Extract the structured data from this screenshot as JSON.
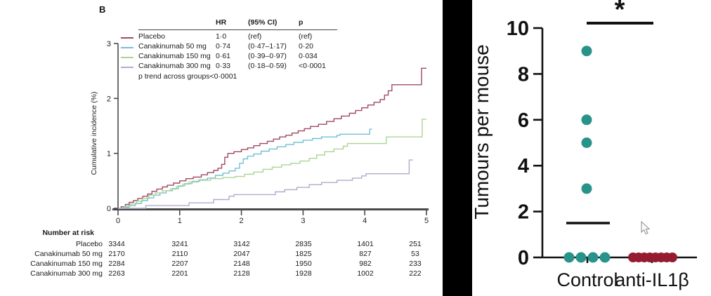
{
  "chart_data": [
    {
      "type": "line",
      "panel_label": "B",
      "ylabel": "Cumulative incidence (%)",
      "xlabel": "",
      "ylim": [
        0,
        3
      ],
      "xlim": [
        0,
        5
      ],
      "yticks": [
        0,
        1,
        2,
        3
      ],
      "xticks": [
        0,
        1,
        2,
        3,
        4,
        5
      ],
      "legend": {
        "headers": [
          "HR",
          "(95% CI)",
          "p"
        ],
        "trend_note": "p trend across groups<0·0001"
      },
      "series": [
        {
          "name": "Placebo",
          "color": "#a04b61",
          "hr": "1·0",
          "ci": "(ref)",
          "p": "(ref)",
          "points": [
            [
              0,
              0
            ],
            [
              0.05,
              0.03
            ],
            [
              0.12,
              0.07
            ],
            [
              0.18,
              0.11
            ],
            [
              0.25,
              0.14
            ],
            [
              0.32,
              0.18
            ],
            [
              0.4,
              0.22
            ],
            [
              0.48,
              0.26
            ],
            [
              0.55,
              0.31
            ],
            [
              0.63,
              0.35
            ],
            [
              0.72,
              0.39
            ],
            [
              0.8,
              0.42
            ],
            [
              0.9,
              0.46
            ],
            [
              1.0,
              0.5
            ],
            [
              1.1,
              0.54
            ],
            [
              1.22,
              0.57
            ],
            [
              1.35,
              0.61
            ],
            [
              1.45,
              0.65
            ],
            [
              1.55,
              0.69
            ],
            [
              1.62,
              0.73
            ],
            [
              1.68,
              0.8
            ],
            [
              1.73,
              0.93
            ],
            [
              1.78,
              1.0
            ],
            [
              1.88,
              1.03
            ],
            [
              2.0,
              1.07
            ],
            [
              2.1,
              1.1
            ],
            [
              2.2,
              1.14
            ],
            [
              2.3,
              1.18
            ],
            [
              2.42,
              1.22
            ],
            [
              2.52,
              1.26
            ],
            [
              2.62,
              1.3
            ],
            [
              2.72,
              1.33
            ],
            [
              2.82,
              1.37
            ],
            [
              2.92,
              1.41
            ],
            [
              3.02,
              1.45
            ],
            [
              3.12,
              1.49
            ],
            [
              3.25,
              1.53
            ],
            [
              3.38,
              1.58
            ],
            [
              3.5,
              1.63
            ],
            [
              3.62,
              1.68
            ],
            [
              3.75,
              1.73
            ],
            [
              3.85,
              1.78
            ],
            [
              3.95,
              1.83
            ],
            [
              4.05,
              1.88
            ],
            [
              4.15,
              1.93
            ],
            [
              4.25,
              1.98
            ],
            [
              4.32,
              2.06
            ],
            [
              4.38,
              2.14
            ],
            [
              4.44,
              2.25
            ],
            [
              4.9,
              2.25
            ],
            [
              4.92,
              2.55
            ],
            [
              5.0,
              2.55
            ]
          ]
        },
        {
          "name": "Canakinumab 50 mg",
          "color": "#74c0d4",
          "hr": "0·74",
          "ci": "(0·47–1·17)",
          "p": "0·20",
          "points": [
            [
              0,
              0
            ],
            [
              0.08,
              0.02
            ],
            [
              0.18,
              0.05
            ],
            [
              0.28,
              0.09
            ],
            [
              0.38,
              0.14
            ],
            [
              0.48,
              0.19
            ],
            [
              0.58,
              0.24
            ],
            [
              0.68,
              0.28
            ],
            [
              0.78,
              0.32
            ],
            [
              0.88,
              0.36
            ],
            [
              0.98,
              0.41
            ],
            [
              1.08,
              0.45
            ],
            [
              1.2,
              0.49
            ],
            [
              1.32,
              0.52
            ],
            [
              1.45,
              0.55
            ],
            [
              1.58,
              0.6
            ],
            [
              1.7,
              0.64
            ],
            [
              1.8,
              0.68
            ],
            [
              1.9,
              0.73
            ],
            [
              1.97,
              0.82
            ],
            [
              2.03,
              0.9
            ],
            [
              2.1,
              0.95
            ],
            [
              2.2,
              0.99
            ],
            [
              2.32,
              1.04
            ],
            [
              2.45,
              1.08
            ],
            [
              2.58,
              1.12
            ],
            [
              2.72,
              1.16
            ],
            [
              2.85,
              1.2
            ],
            [
              3.0,
              1.24
            ],
            [
              3.15,
              1.27
            ],
            [
              3.3,
              1.3
            ],
            [
              3.55,
              1.33
            ],
            [
              3.6,
              1.35
            ],
            [
              4.05,
              1.35
            ],
            [
              4.08,
              1.44
            ],
            [
              4.12,
              1.44
            ]
          ]
        },
        {
          "name": "Canakinumab 150 mg",
          "color": "#abd596",
          "hr": "0·61",
          "ci": "(0·39–0·97)",
          "p": "0·034",
          "points": [
            [
              0,
              0
            ],
            [
              0.1,
              0.04
            ],
            [
              0.2,
              0.08
            ],
            [
              0.3,
              0.13
            ],
            [
              0.4,
              0.18
            ],
            [
              0.5,
              0.24
            ],
            [
              0.6,
              0.28
            ],
            [
              0.72,
              0.32
            ],
            [
              0.85,
              0.35
            ],
            [
              0.95,
              0.4
            ],
            [
              1.05,
              0.44
            ],
            [
              1.15,
              0.48
            ],
            [
              1.3,
              0.51
            ],
            [
              1.5,
              0.54
            ],
            [
              1.7,
              0.56
            ],
            [
              1.9,
              0.58
            ],
            [
              2.05,
              0.62
            ],
            [
              2.2,
              0.66
            ],
            [
              2.35,
              0.71
            ],
            [
              2.5,
              0.75
            ],
            [
              2.65,
              0.79
            ],
            [
              2.8,
              0.82
            ],
            [
              2.95,
              0.86
            ],
            [
              3.1,
              0.91
            ],
            [
              3.22,
              0.97
            ],
            [
              3.35,
              1.03
            ],
            [
              3.5,
              1.08
            ],
            [
              3.65,
              1.13
            ],
            [
              3.72,
              1.18
            ],
            [
              4.3,
              1.18
            ],
            [
              4.35,
              1.3
            ],
            [
              4.9,
              1.3
            ],
            [
              4.93,
              1.62
            ],
            [
              5.0,
              1.62
            ]
          ]
        },
        {
          "name": "Canakinumab 300 mg",
          "color": "#aeacce",
          "hr": "0·33",
          "ci": "(0·18–0·59)",
          "p": "<0·0001",
          "points": [
            [
              0,
              0
            ],
            [
              0.45,
              0.05
            ],
            [
              1.15,
              0.1
            ],
            [
              1.55,
              0.16
            ],
            [
              1.8,
              0.22
            ],
            [
              1.88,
              0.25
            ],
            [
              2.55,
              0.3
            ],
            [
              2.7,
              0.34
            ],
            [
              2.9,
              0.38
            ],
            [
              3.1,
              0.43
            ],
            [
              3.3,
              0.47
            ],
            [
              3.55,
              0.51
            ],
            [
              3.8,
              0.55
            ],
            [
              3.95,
              0.59
            ],
            [
              4.02,
              0.63
            ],
            [
              4.68,
              0.63
            ],
            [
              4.72,
              0.88
            ],
            [
              4.78,
              0.88
            ]
          ]
        }
      ],
      "number_at_risk": {
        "title": "Number at risk",
        "rows": [
          {
            "label": "Placebo",
            "values": [
              "3344",
              "3241",
              "3142",
              "2835",
              "1401",
              "251"
            ]
          },
          {
            "label": "Canakinumab 50 mg",
            "values": [
              "2170",
              "2110",
              "2047",
              "1825",
              "827",
              "53"
            ]
          },
          {
            "label": "Canakinumab 150 mg",
            "values": [
              "2284",
              "2207",
              "2148",
              "1950",
              "982",
              "233"
            ]
          },
          {
            "label": "Canakinumab 300 mg",
            "values": [
              "2263",
              "2201",
              "2128",
              "1928",
              "1002",
              "222"
            ]
          }
        ]
      }
    },
    {
      "type": "scatter",
      "ylabel": "Tumours per mouse",
      "ylim": [
        0,
        10
      ],
      "yticks": [
        0,
        2,
        4,
        6,
        8,
        10
      ],
      "significance": "*",
      "groups": [
        {
          "label": "Control",
          "color": "#28938a",
          "values": [
            9,
            6,
            5,
            3,
            0,
            0,
            0,
            0
          ],
          "median_bar": 1.5
        },
        {
          "label": "anti-IL1β",
          "color": "#951c30",
          "values": [
            0,
            0,
            0,
            0,
            0,
            0,
            0,
            0
          ]
        }
      ]
    }
  ]
}
